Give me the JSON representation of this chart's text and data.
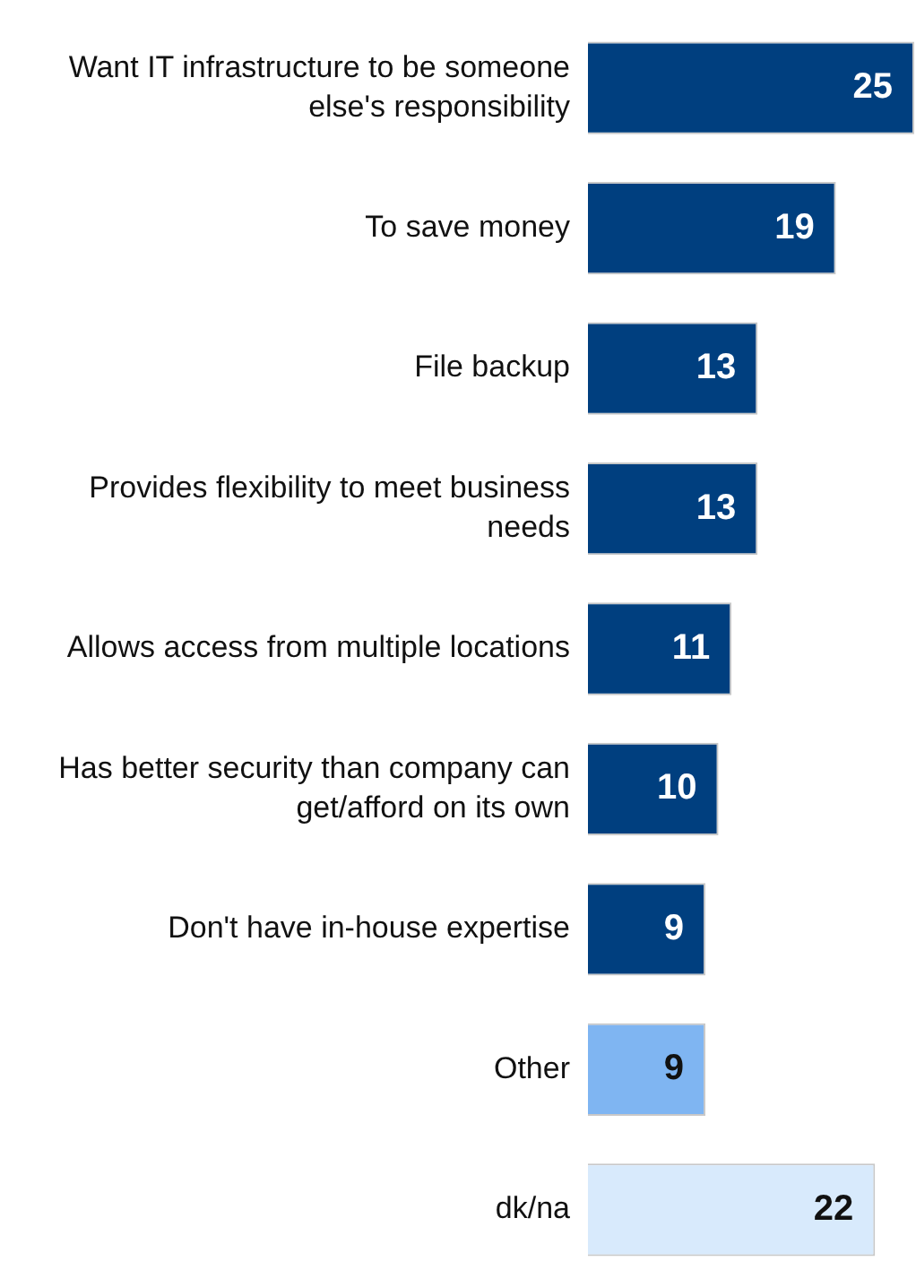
{
  "chart_data": {
    "type": "bar",
    "orientation": "horizontal",
    "categories": [
      "Want IT infrastructure to be someone else's responsibility",
      "To save money",
      "File backup",
      "Provides flexibility to meet business needs",
      "Allows access from multiple locations",
      "Has better security than company can get/afford on its own",
      "Don't have in-house expertise",
      "Other",
      "dk/na"
    ],
    "values": [
      25,
      19,
      13,
      13,
      11,
      10,
      9,
      9,
      22
    ],
    "colors": [
      "#003f7f",
      "#003f7f",
      "#003f7f",
      "#003f7f",
      "#003f7f",
      "#003f7f",
      "#003f7f",
      "#7fb5f2",
      "#d8eafc"
    ],
    "data_labels": true,
    "legend": false
  }
}
